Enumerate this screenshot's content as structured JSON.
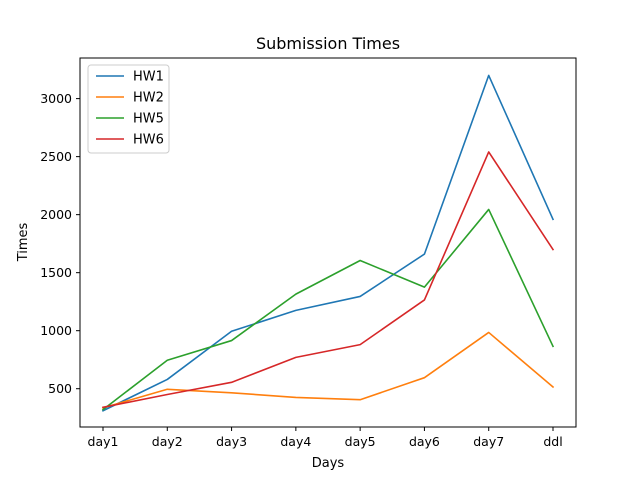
{
  "chart_data": {
    "type": "line",
    "title": "Submission Times",
    "xlabel": "Days",
    "ylabel": "Times",
    "categories": [
      "day1",
      "day2",
      "day3",
      "day4",
      "day5",
      "day6",
      "day7",
      "ddl"
    ],
    "yticks": [
      500,
      1000,
      1500,
      2000,
      2500,
      3000
    ],
    "ylim": [
      170,
      3350
    ],
    "grid": false,
    "legend_position": "top-left",
    "series": [
      {
        "name": "HW1",
        "color": "#1f77b4",
        "values": [
          310,
          580,
          995,
          1175,
          1295,
          1660,
          3200,
          1960
        ]
      },
      {
        "name": "HW2",
        "color": "#ff7f0e",
        "values": [
          335,
          495,
          465,
          425,
          405,
          595,
          985,
          515
        ]
      },
      {
        "name": "HW5",
        "color": "#2ca02c",
        "values": [
          320,
          745,
          915,
          1315,
          1605,
          1375,
          2045,
          865
        ]
      },
      {
        "name": "HW6",
        "color": "#d62728",
        "values": [
          340,
          450,
          555,
          770,
          880,
          1265,
          2540,
          1700
        ]
      }
    ]
  }
}
